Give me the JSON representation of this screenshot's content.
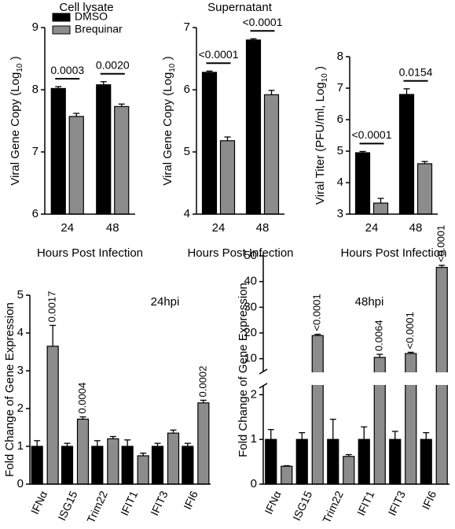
{
  "chart_data": [
    {
      "type": "bar",
      "title": "Cell lysate",
      "x_label": "Hours Post Infection",
      "y_label": [
        "Viral Gene Copy (Log",
        "10",
        " )"
      ],
      "categories": [
        "24",
        "48"
      ],
      "legend": "upper left",
      "annotation_style": "bracket",
      "series": [
        {
          "name": "DMSO",
          "color": "#000000",
          "values": [
            8.02,
            8.08
          ],
          "errors": [
            0.03,
            0.05
          ]
        },
        {
          "name": "Brequinar",
          "color": "#8c8c8c",
          "values": [
            7.57,
            7.73
          ],
          "errors": [
            0.05,
            0.04
          ]
        }
      ],
      "p_values": [
        "0.0003",
        "0.0020"
      ],
      "ylim": [
        6,
        9
      ],
      "yticks": [
        6,
        7,
        8,
        9
      ]
    },
    {
      "type": "bar",
      "title": "Supernatant",
      "x_label": "Hours Post Infection",
      "y_label": [
        "Viral Gene Copy (Log",
        "10",
        " )"
      ],
      "categories": [
        "24",
        "48"
      ],
      "annotation_style": "bracket",
      "series": [
        {
          "color": "#000000",
          "values": [
            6.28,
            6.8
          ],
          "errors": [
            0.02,
            0.02
          ]
        },
        {
          "color": "#8c8c8c",
          "values": [
            5.18,
            5.92
          ],
          "errors": [
            0.06,
            0.07
          ]
        }
      ],
      "p_values": [
        "<0.0001",
        "<0.0001"
      ],
      "ylim": [
        4,
        7
      ],
      "yticks": [
        4,
        5,
        6,
        7
      ]
    },
    {
      "type": "bar",
      "x_label": "Hours Post Infection",
      "y_label": [
        "Viral Titer (PFU/ml, Log",
        "10",
        " )"
      ],
      "categories": [
        "24",
        "48"
      ],
      "annotation_style": "bracket",
      "series": [
        {
          "color": "#000000",
          "values": [
            4.95,
            6.8
          ],
          "errors": [
            0.04,
            0.18
          ]
        },
        {
          "color": "#8c8c8c",
          "values": [
            3.35,
            4.6
          ],
          "errors": [
            0.15,
            0.07
          ]
        }
      ],
      "p_values": [
        "<0.0001",
        "0.0154"
      ],
      "ylim": [
        3,
        8
      ],
      "yticks": [
        3,
        4,
        5,
        6,
        7,
        8
      ]
    },
    {
      "type": "bar",
      "title": "24hpi",
      "y_label": [
        "Fold Change of Gene Expression"
      ],
      "categories": [
        "IFNα",
        "ISG15",
        "Trim22",
        "IFIT1",
        "IFIT3",
        "IFI6"
      ],
      "annotation_style": "rotated",
      "series": [
        {
          "color": "#000000",
          "values": [
            1,
            1,
            1,
            1,
            1,
            1
          ],
          "errors": [
            0.15,
            0.08,
            0.15,
            0.17,
            0.08,
            0.08
          ]
        },
        {
          "color": "#8c8c8c",
          "values": [
            3.65,
            1.72,
            1.2,
            0.75,
            1.35,
            2.15
          ],
          "errors": [
            0.55,
            0.06,
            0.06,
            0.07,
            0.08,
            0.07
          ]
        }
      ],
      "p_values": [
        "0.0017",
        "0.0004",
        null,
        null,
        null,
        "0.0002"
      ],
      "ylim": [
        0,
        5
      ],
      "yticks": [
        0,
        1,
        2,
        3,
        4,
        5
      ]
    },
    {
      "type": "bar",
      "title": "48hpi",
      "y_label": [
        "Fold Change of Gene Expression"
      ],
      "categories": [
        "IFNα",
        "ISG15",
        "Trim22",
        "IFIT1",
        "IFIT3",
        "IFI6"
      ],
      "annotation_style": "rotated",
      "series": [
        {
          "color": "#000000",
          "values": [
            1,
            1,
            1,
            1,
            1,
            1
          ],
          "errors": [
            0.22,
            0.15,
            0.45,
            0.28,
            0.18,
            0.15
          ]
        },
        {
          "color": "#8c8c8c",
          "values": [
            0.4,
            19,
            0.62,
            10.5,
            12,
            45.5
          ],
          "errors": [
            0.01,
            0.5,
            0.04,
            1.2,
            0.5,
            0.8
          ]
        }
      ],
      "p_values": [
        null,
        "<0.0001",
        null,
        "0.0064",
        "<0.0001",
        "<0.0001"
      ],
      "ylim": [
        0,
        50
      ],
      "ybreak": [
        2.2,
        5
      ],
      "yticks": [
        0,
        1,
        2,
        10,
        20,
        30,
        40,
        50
      ]
    }
  ]
}
